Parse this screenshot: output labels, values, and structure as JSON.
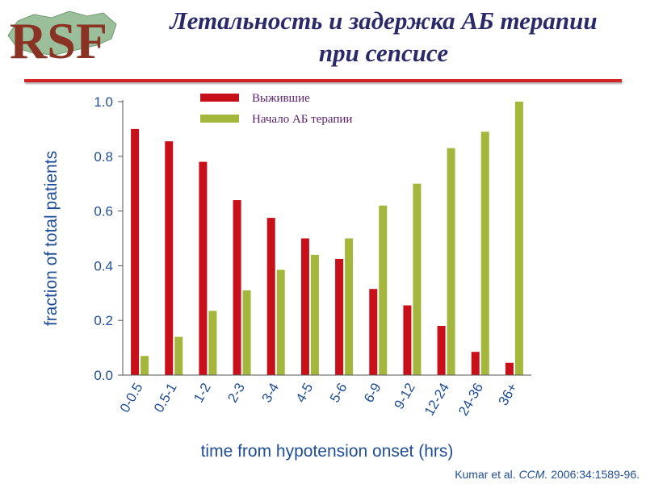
{
  "header": {
    "title_line1": "Летальность и задержка АБ терапии",
    "title_line2": "при сепсисе",
    "logo_text": "RSF"
  },
  "citation": {
    "authors": "Kumar et al.",
    "journal": "CCM.",
    "ref": "2006:34:1589-96."
  },
  "colors": {
    "survivors": "#c8101a",
    "antibiotic_start": "#a4b73c",
    "axis_text": "#1f4e96",
    "title": "#2a2a6a",
    "rule": "#d42424"
  },
  "chart_data": {
    "type": "bar",
    "categories": [
      "0-0.5",
      "0.5-1",
      "1-2",
      "2-3",
      "3-4",
      "4-5",
      "5-6",
      "6-9",
      "9-12",
      "12-24",
      "24-36",
      "36+"
    ],
    "series": [
      {
        "name": "Выжившие",
        "values": [
          0.9,
          0.855,
          0.78,
          0.64,
          0.575,
          0.5,
          0.425,
          0.315,
          0.255,
          0.18,
          0.085,
          0.045
        ]
      },
      {
        "name": "Начало АБ терапии",
        "values": [
          0.07,
          0.14,
          0.235,
          0.31,
          0.385,
          0.44,
          0.5,
          0.62,
          0.7,
          0.83,
          0.89,
          1.0
        ]
      }
    ],
    "xlabel": "time from hypotension onset (hrs)",
    "ylabel": "fraction of total patients",
    "ylim": [
      0,
      1
    ],
    "yticks": [
      "0.0",
      "0.2",
      "0.4",
      "0.6",
      "0.8",
      "1.0"
    ],
    "legend_position": "top-left",
    "grid": false
  }
}
